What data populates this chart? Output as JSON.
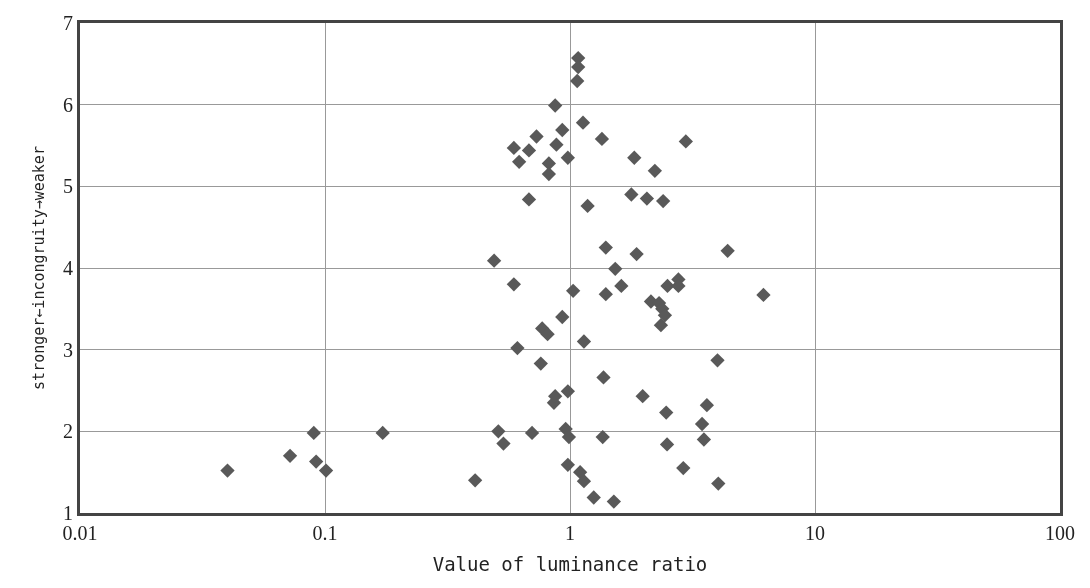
{
  "chart_data": {
    "type": "scatter",
    "xlabel": "Value of luminance ratio",
    "ylabel": "stronger←incongruity→weaker",
    "x": [
      0.04,
      0.072,
      0.09,
      0.092,
      0.101,
      0.172,
      0.41,
      0.49,
      0.51,
      0.535,
      0.59,
      0.61,
      0.59,
      0.62,
      0.68,
      0.73,
      0.68,
      0.7,
      0.76,
      0.77,
      0.81,
      0.82,
      0.82,
      0.87,
      0.88,
      0.86,
      0.87,
      0.93,
      0.93,
      0.98,
      0.98,
      0.96,
      0.99,
      0.98,
      1.03,
      1.08,
      1.08,
      1.07,
      1.13,
      1.1,
      1.14,
      1.14,
      1.18,
      1.25,
      1.35,
      1.4,
      1.4,
      1.37,
      1.36,
      1.53,
      1.62,
      1.51,
      1.78,
      1.83,
      1.87,
      1.98,
      2.06,
      2.14,
      2.22,
      2.31,
      2.4,
      2.38,
      2.35,
      2.44,
      2.47,
      2.49,
      2.5,
      2.77,
      2.77,
      2.9,
      2.97,
      4.0,
      4.4,
      6.16,
      3.62,
      3.46,
      3.52,
      4.03
    ],
    "values": [
      1.52,
      1.7,
      1.98,
      1.63,
      1.52,
      1.98,
      1.4,
      4.09,
      2.0,
      1.85,
      3.8,
      3.02,
      5.47,
      5.3,
      5.44,
      5.61,
      4.84,
      1.98,
      2.83,
      3.26,
      3.19,
      5.28,
      5.15,
      5.99,
      5.51,
      2.35,
      2.43,
      5.69,
      3.4,
      5.35,
      2.49,
      2.03,
      1.93,
      1.59,
      3.72,
      6.57,
      6.46,
      6.29,
      5.78,
      1.5,
      1.39,
      3.1,
      4.76,
      1.19,
      5.58,
      4.25,
      3.68,
      2.66,
      1.93,
      3.99,
      3.78,
      1.14,
      4.9,
      5.35,
      4.17,
      2.43,
      4.85,
      3.59,
      5.19,
      3.57,
      4.82,
      3.5,
      3.3,
      3.42,
      2.23,
      1.84,
      3.78,
      3.86,
      3.78,
      1.55,
      5.55,
      2.87,
      4.21,
      3.67,
      2.32,
      2.09,
      1.9,
      1.36
    ],
    "color": "#595959",
    "marker": "diamond",
    "log": "x",
    "xlim": [
      0.01,
      100
    ],
    "xticks": [
      0.01,
      0.1,
      1,
      10,
      100
    ],
    "ylim": [
      1,
      7
    ],
    "yticks": [
      1,
      2,
      3,
      4,
      5,
      6,
      7
    ],
    "grid": true
  }
}
